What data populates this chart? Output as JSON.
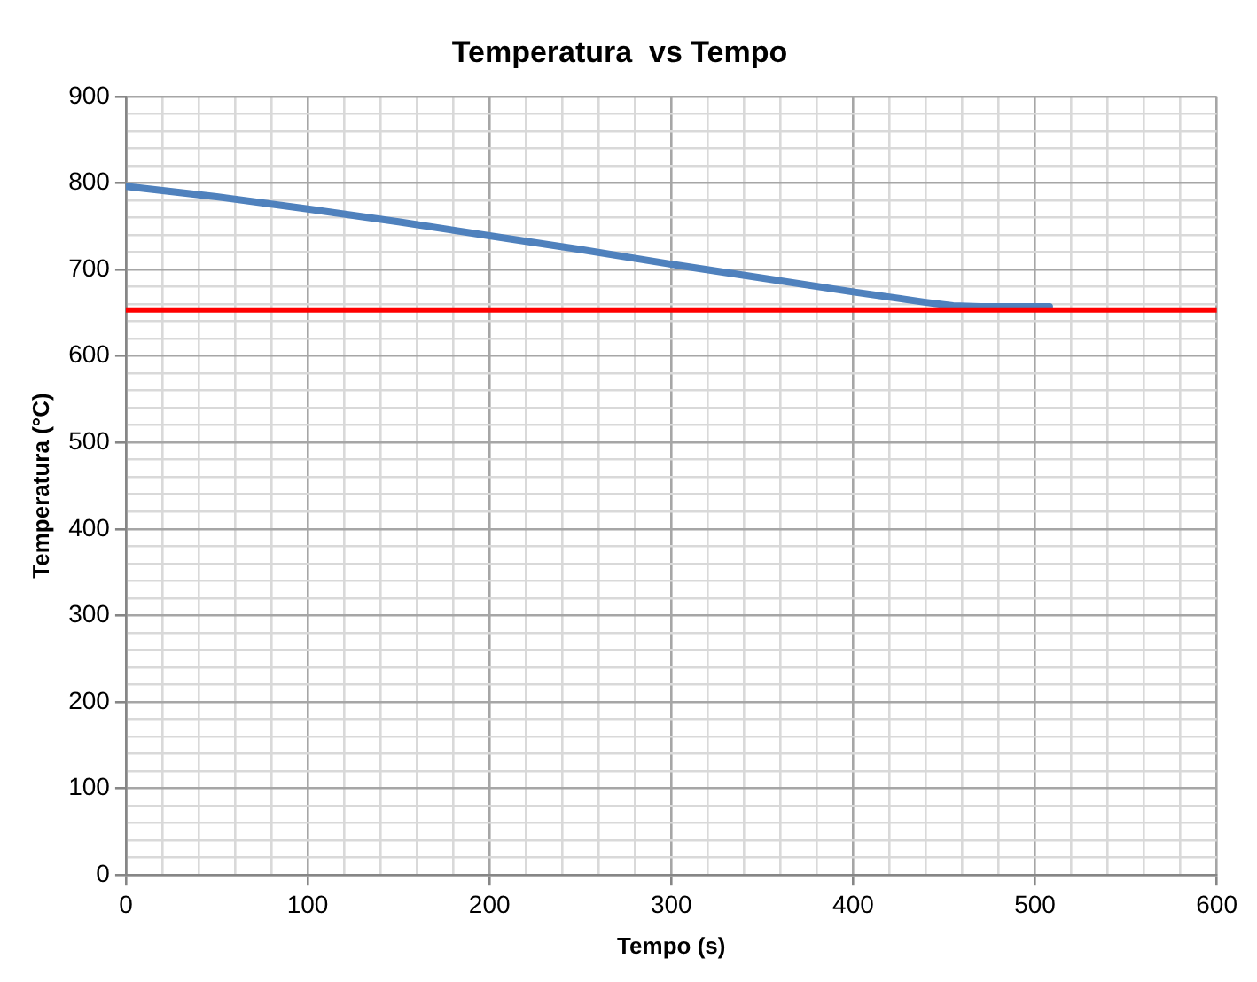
{
  "chart_data": {
    "type": "line",
    "title": "Temperatura  vs Tempo",
    "xlabel": "Tempo (s)",
    "ylabel": "Temperatura (°C)",
    "x": [
      0,
      50,
      100,
      150,
      200,
      250,
      300,
      350,
      400,
      440,
      455,
      470,
      508
    ],
    "series": [
      {
        "color": "#4f81bd",
        "values": [
          796,
          784,
          770,
          755,
          739,
          723,
          706,
          690,
          674,
          662,
          658,
          657,
          657
        ]
      }
    ],
    "xlim": [
      0,
      600
    ],
    "ylim": [
      0,
      900
    ],
    "xticks": [
      0,
      {
        "value": 20,
        "label": null
      },
      {
        "value": 40,
        "label": null
      },
      {
        "value": 60,
        "label": null
      },
      {
        "value": 80,
        "label": null
      },
      100,
      {
        "value": 120,
        "label": null
      },
      {
        "value": 140,
        "label": null
      },
      {
        "value": 160,
        "label": null
      },
      {
        "value": 180,
        "label": null
      },
      200,
      {
        "value": 220,
        "label": null
      },
      {
        "value": 240,
        "label": null
      },
      {
        "value": 260,
        "label": null
      },
      {
        "value": 280,
        "label": null
      },
      300,
      {
        "value": 320,
        "label": null
      },
      {
        "value": 340,
        "label": null
      },
      {
        "value": 360,
        "label": null
      },
      {
        "value": 380,
        "label": null
      },
      400,
      {
        "value": 420,
        "label": null
      },
      {
        "value": 440,
        "label": null
      },
      {
        "value": 460,
        "label": null
      },
      {
        "value": 480,
        "label": null
      },
      500,
      {
        "value": 520,
        "label": null
      },
      {
        "value": 540,
        "label": null
      },
      {
        "value": 560,
        "label": null
      },
      {
        "value": 580,
        "label": null
      },
      600
    ],
    "yticks": [
      0,
      {
        "value": 20,
        "label": null
      },
      {
        "value": 40,
        "label": null
      },
      {
        "value": 60,
        "label": null
      },
      {
        "value": 80,
        "label": null
      },
      100,
      {
        "value": 120,
        "label": null
      },
      {
        "value": 140,
        "label": null
      },
      {
        "value": 160,
        "label": null
      },
      {
        "value": 180,
        "label": null
      },
      200,
      {
        "value": 220,
        "label": null
      },
      {
        "value": 240,
        "label": null
      },
      {
        "value": 260,
        "label": null
      },
      {
        "value": 280,
        "label": null
      },
      300,
      {
        "value": 320,
        "label": null
      },
      {
        "value": 340,
        "label": null
      },
      {
        "value": 360,
        "label": null
      },
      {
        "value": 380,
        "label": null
      },
      400,
      {
        "value": 420,
        "label": null
      },
      {
        "value": 440,
        "label": null
      },
      {
        "value": 460,
        "label": null
      },
      {
        "value": 480,
        "label": null
      },
      500,
      {
        "value": 520,
        "label": null
      },
      {
        "value": 540,
        "label": null
      },
      {
        "value": 560,
        "label": null
      },
      {
        "value": 580,
        "label": null
      },
      600,
      {
        "value": 620,
        "label": null
      },
      {
        "value": 640,
        "label": null
      },
      {
        "value": 660,
        "label": null
      },
      {
        "value": 680,
        "label": null
      },
      700,
      {
        "value": 720,
        "label": null
      },
      {
        "value": 740,
        "label": null
      },
      {
        "value": 760,
        "label": null
      },
      {
        "value": 780,
        "label": null
      },
      800,
      {
        "value": 820,
        "label": null
      },
      {
        "value": 840,
        "label": null
      },
      {
        "value": 860,
        "label": null
      },
      {
        "value": 880,
        "label": null
      },
      900
    ],
    "ref_lines": [
      {
        "axis": "y",
        "value": 653,
        "color": "#ff0000"
      }
    ],
    "grid": true,
    "legend": false,
    "marker": "none",
    "line_style": "solid"
  }
}
